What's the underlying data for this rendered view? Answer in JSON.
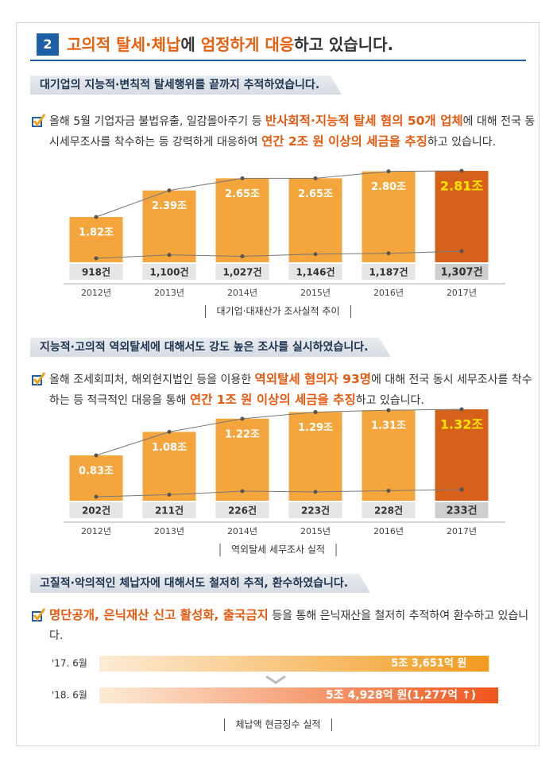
{
  "header": {
    "number": "2",
    "title": [
      {
        "text": "고의적 탈세·체납",
        "em": true
      },
      {
        "text": "에 "
      },
      {
        "text": "엄정하게 대응",
        "em": true
      },
      {
        "text": "하고 있습니다."
      }
    ]
  },
  "sections": [
    {
      "heading": "대기업의 지능적·변칙적 탈세행위를 끝까지 추적하였습니다.",
      "text": [
        {
          "text": "올해 5월 기업자금 불법유출, 일감몰아주기 등 "
        },
        {
          "text": "반사회적·지능적 탈세 혐의 50개 업체",
          "em": true
        },
        {
          "text": "에 대해 전국 동시세무조사를 착수하는 등 강력하게 대응하여 "
        },
        {
          "text": "연간 2조 원 이상의 세금을 추징",
          "em": true
        },
        {
          "text": "하고 있습니다."
        }
      ],
      "chart": {
        "type": "bar-line",
        "categories": [
          "2012년",
          "2013년",
          "2014년",
          "2015년",
          "2016년",
          "2017년"
        ],
        "series": [
          {
            "type": "bar",
            "color": "#f4a53c",
            "values": [
              1.82,
              2.39,
              2.65,
              2.65,
              2.8,
              2.81
            ],
            "value_labels": [
              "1.82조",
              "2.39조",
              "2.65조",
              "2.65조",
              "2.80조",
              "2.81조"
            ]
          },
          {
            "type": "line",
            "axis": "y2",
            "values": [
              918,
              1100,
              1027,
              1146,
              1187,
              1307
            ],
            "value_labels": [
              "918건",
              "1,100건",
              "1,027건",
              "1,146건",
              "1,187건",
              "1,307건"
            ]
          }
        ],
        "caption": "대기업·대재산가 조사실적 추이"
      }
    },
    {
      "heading": "지능적·고의적 역외탈세에 대해서도 강도 높은 조사를 실시하였습니다.",
      "text": [
        {
          "text": "올해 조세회피처, 해외현지법인 등을 이용한 "
        },
        {
          "text": "역외탈세 혐의자 93명",
          "em": true
        },
        {
          "text": "에 대해 전국 동시 세무조사를 착수하는 등 적극적인 대응을 통해 "
        },
        {
          "text": "연간 1조 원 이상의 세금을 추징",
          "em": true
        },
        {
          "text": "하고 있습니다."
        }
      ],
      "chart": {
        "type": "bar-line",
        "categories": [
          "2012년",
          "2013년",
          "2014년",
          "2015년",
          "2016년",
          "2017년"
        ],
        "series": [
          {
            "type": "bar",
            "color": "#f4a53c",
            "values": [
              0.83,
              1.08,
              1.22,
              1.29,
              1.31,
              1.32
            ],
            "value_labels": [
              "0.83조",
              "1.08조",
              "1.22조",
              "1.29조",
              "1.31조",
              "1.32조"
            ]
          },
          {
            "type": "line",
            "axis": "y2",
            "values": [
              202,
              211,
              226,
              223,
              228,
              233
            ],
            "value_labels": [
              "202건",
              "211건",
              "226건",
              "223건",
              "228건",
              "233건"
            ]
          }
        ],
        "caption": "역외탈세 세무조사 실적"
      }
    },
    {
      "heading": "고질적·악의적인 체납자에 대해서도 철저히 추적, 환수하였습니다.",
      "text": [
        {
          "text": "명단공개, 은닉재산 신고 활성화, 출국금지",
          "em": true
        },
        {
          "text": " 등을 통해 은닉재산을 철저히 추적하여 환수하고 있습니다."
        }
      ],
      "chart": {
        "type": "hbar",
        "categories": [
          "'17. 6월",
          "'18. 6월"
        ],
        "values": [
          53651,
          54928
        ],
        "value_labels": [
          "5조 3,651억 원",
          "5조 4,928억 원(1,277억 ↑)"
        ],
        "caption": "체납액 현금징수 실적"
      }
    }
  ]
}
